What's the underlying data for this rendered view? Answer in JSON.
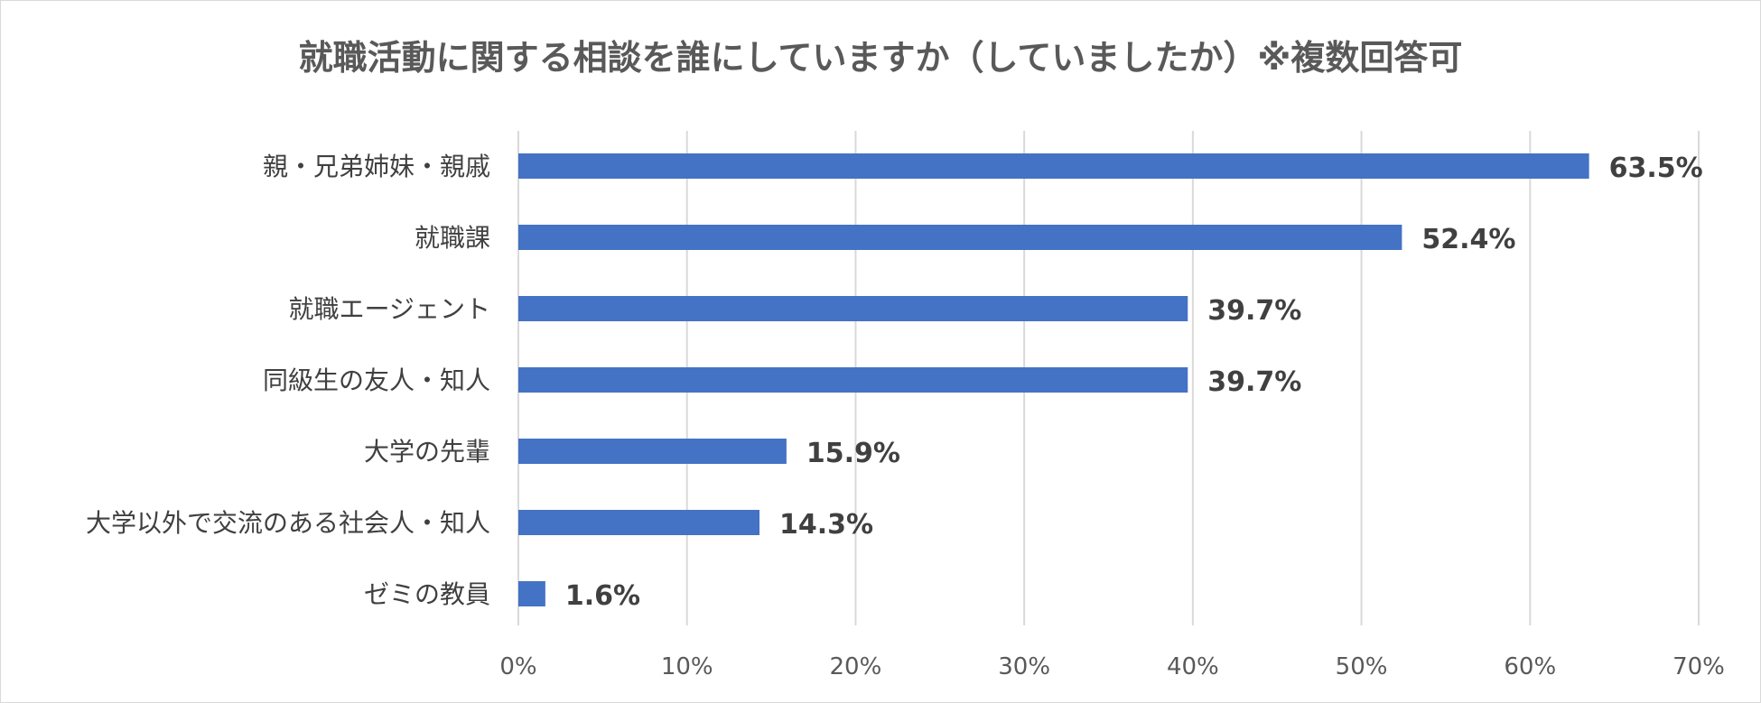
{
  "chart_data": {
    "type": "bar",
    "orientation": "horizontal",
    "title": "就職活動に関する相談を誰にしていますか（していましたか）※複数回答可",
    "categories": [
      "親・兄弟姉妹・親戚",
      "就職課",
      "就職エージェント",
      "同級生の友人・知人",
      "大学の先輩",
      "大学以外で交流のある社会人・知人",
      "ゼミの教員"
    ],
    "values": [
      63.5,
      52.4,
      39.7,
      39.7,
      15.9,
      14.3,
      1.6
    ],
    "data_labels": [
      "63.5%",
      "52.4%",
      "39.7%",
      "39.7%",
      "15.9%",
      "14.3%",
      "1.6%"
    ],
    "x_ticks": [
      0,
      10,
      20,
      30,
      40,
      50,
      60,
      70
    ],
    "x_tick_labels": [
      "0%",
      "10%",
      "20%",
      "30%",
      "40%",
      "50%",
      "60%",
      "70%"
    ],
    "xlim": [
      0,
      70
    ],
    "grid": true,
    "legend": "none",
    "bar_color": "#4472c4"
  }
}
